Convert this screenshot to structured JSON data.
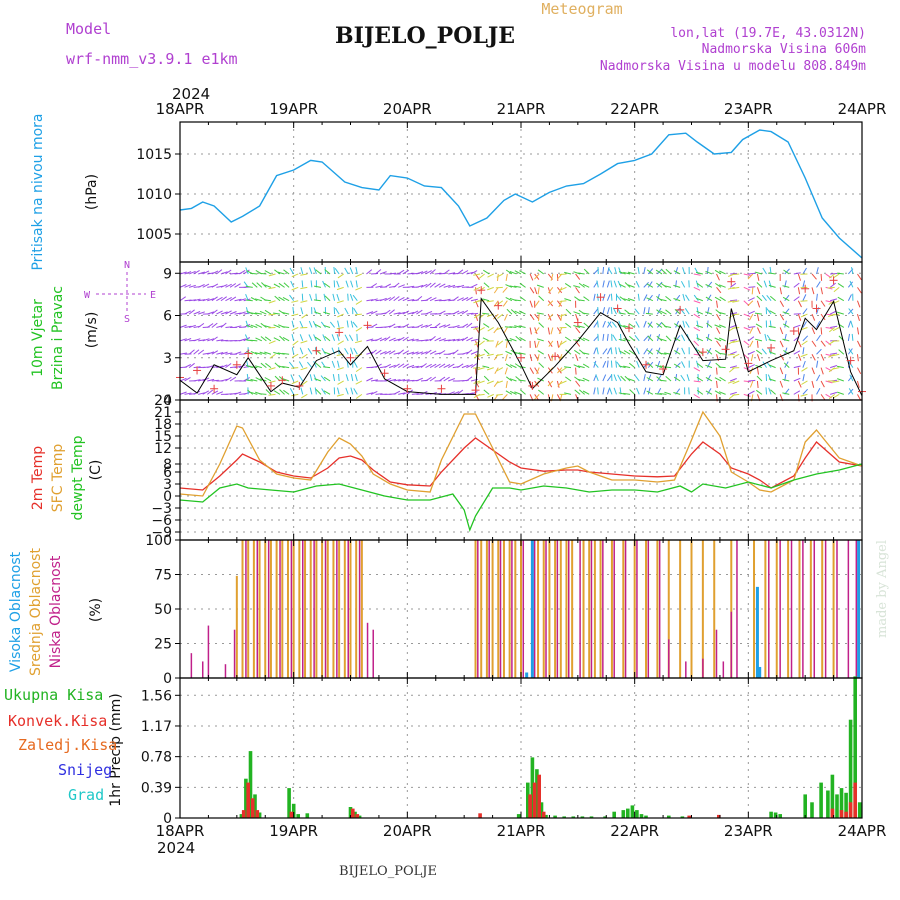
{
  "header": {
    "model_label": "Model",
    "model_value": "wrf-nmm_v3.9.1  e1km",
    "title": "BIJELO_POLJE",
    "meteogram": "Meteogram",
    "lonlat": "lon,lat (19.7E, 43.0312N)",
    "altitude": "Nadmorska Visina 606m",
    "model_altitude": "Nadmorska Visina u modelu 808.849m",
    "year_top": "2024",
    "year_bottom": "2024",
    "footer_title": "BIJELO_POLJE",
    "credit": "made by Angel"
  },
  "colors": {
    "pressure": "#1ea0e6",
    "wind_label": "#22c322",
    "temp_2m": "#e6302a",
    "temp_sfc": "#e0a030",
    "dewpt": "#22c322",
    "cloud_high": "#1ea0e6",
    "cloud_mid": "#e0a030",
    "cloud_low": "#c0208a",
    "rain_total": "#22b322",
    "rain_conv": "#e6302a",
    "rain_frozen": "#e66a20",
    "snow": "#3030e0",
    "hail": "#20c8c8",
    "purple_text": "#b040d0",
    "meteogram_text": "#e0b060"
  },
  "chart_data": [
    {
      "type": "line",
      "title": "",
      "ylabel_lines": [
        "Pritisak na nivou mora",
        "(hPa)"
      ],
      "ylim": [
        1001.5,
        1019
      ],
      "yticks": [
        1005,
        1010,
        1015
      ],
      "x_days": [
        0,
        0.1,
        0.2,
        0.3,
        0.45,
        0.55,
        0.7,
        0.85,
        1.0,
        1.15,
        1.25,
        1.45,
        1.6,
        1.75,
        1.85,
        2.0,
        2.15,
        2.3,
        2.45,
        2.55,
        2.7,
        2.85,
        2.95,
        3.1,
        3.25,
        3.4,
        3.55,
        3.7,
        3.85,
        4.0,
        4.15,
        4.3,
        4.45,
        4.55,
        4.7,
        4.85,
        4.95,
        5.1,
        5.2,
        5.35,
        5.5,
        5.65,
        5.8,
        6.0
      ],
      "values": [
        1008,
        1008.2,
        1009,
        1008.5,
        1006.5,
        1007.2,
        1008.5,
        1012.3,
        1013,
        1014.2,
        1014,
        1011.5,
        1010.8,
        1010.5,
        1012.3,
        1012,
        1011,
        1010.8,
        1008.5,
        1006,
        1007,
        1009.2,
        1010,
        1009,
        1010.2,
        1011,
        1011.3,
        1012.5,
        1013.8,
        1014.2,
        1015,
        1017.4,
        1017.6,
        1016.5,
        1015,
        1015.2,
        1016.8,
        1018,
        1017.8,
        1016.5,
        1012,
        1007,
        1004.5,
        1002
      ]
    },
    {
      "type": "line",
      "title": "",
      "ylabel_lines": [
        "10m Vjetar",
        "Brzina i Pravac",
        "(m/s)"
      ],
      "compass": [
        "N",
        "S",
        "W",
        "E"
      ],
      "ylim": [
        0,
        9.8
      ],
      "yticks": [
        0,
        3,
        6,
        9
      ],
      "x_days": [
        0,
        0.15,
        0.3,
        0.5,
        0.6,
        0.8,
        0.9,
        1.05,
        1.2,
        1.4,
        1.5,
        1.65,
        1.8,
        2.0,
        2.3,
        2.6,
        2.65,
        2.8,
        3.0,
        3.1,
        3.3,
        3.5,
        3.7,
        3.85,
        3.95,
        4.1,
        4.25,
        4.4,
        4.6,
        4.8,
        4.85,
        5.0,
        5.2,
        5.4,
        5.5,
        5.6,
        5.75,
        5.9,
        6.0
      ],
      "values": [
        1.4,
        0.5,
        2.5,
        1.8,
        3.0,
        0.6,
        1.2,
        0.9,
        2.8,
        3.5,
        2.5,
        3.8,
        1.5,
        0.6,
        0.4,
        0.4,
        7.2,
        5.5,
        2.5,
        0.8,
        2.4,
        4.2,
        6.2,
        5.5,
        4.0,
        2.0,
        1.8,
        5.3,
        2.8,
        2.9,
        6.5,
        2.0,
        2.8,
        3.5,
        5.8,
        5.0,
        7.0,
        2.0,
        0.3
      ],
      "red_markers": [
        1.6,
        2.1,
        0.8,
        2.5,
        3.3,
        1.0,
        1.4,
        1.0,
        3.5,
        4.8,
        3.0,
        5.3,
        1.9,
        0.8,
        0.8,
        0.7,
        7.8,
        6.7,
        3.0,
        1.0,
        3.1,
        5.5,
        7.3,
        6.5,
        5.1,
        2.5,
        2.2,
        6.4,
        3.4,
        3.6,
        8.4,
        2.6,
        3.7,
        4.9,
        7.9,
        6.5,
        8.5,
        2.8,
        0.6
      ]
    },
    {
      "type": "line",
      "title": "",
      "ylabel_lines": [
        "2m Temp",
        "SFC Temp",
        "dewpt Temp",
        "(C)"
      ],
      "ylim": [
        -11,
        24
      ],
      "yticks": [
        -9,
        -6,
        -3,
        0,
        3,
        6,
        8,
        12,
        15,
        18,
        21,
        24
      ],
      "series": [
        {
          "name": "2m Temp",
          "x_days": [
            0,
            0.2,
            0.35,
            0.5,
            0.55,
            0.7,
            0.85,
            1.0,
            1.15,
            1.3,
            1.4,
            1.5,
            1.6,
            1.7,
            1.85,
            2.0,
            2.2,
            2.3,
            2.5,
            2.6,
            2.75,
            2.9,
            3.0,
            3.2,
            3.4,
            3.5,
            3.6,
            3.8,
            4.0,
            4.2,
            4.35,
            4.5,
            4.6,
            4.75,
            4.85,
            5.0,
            5.1,
            5.2,
            5.4,
            5.5,
            5.6,
            5.8,
            6.0
          ],
          "values": [
            2,
            1.5,
            5,
            9,
            10.5,
            8.5,
            6,
            5,
            4.5,
            7,
            9.5,
            10,
            9,
            6.5,
            3.5,
            2.8,
            2.5,
            6,
            12,
            14.5,
            11.5,
            8.5,
            7,
            6.2,
            6.5,
            6.5,
            6,
            5.5,
            5,
            4.8,
            5,
            10.5,
            13.5,
            10.5,
            7,
            5.5,
            4,
            2,
            5,
            9.5,
            13.5,
            8.5,
            7.5
          ]
        },
        {
          "name": "SFC Temp",
          "x_days": [
            0,
            0.2,
            0.35,
            0.5,
            0.55,
            0.7,
            0.85,
            1.0,
            1.15,
            1.3,
            1.4,
            1.5,
            1.6,
            1.7,
            1.85,
            2.0,
            2.2,
            2.3,
            2.5,
            2.6,
            2.75,
            2.9,
            3.0,
            3.2,
            3.4,
            3.5,
            3.6,
            3.8,
            4.0,
            4.2,
            4.35,
            4.5,
            4.6,
            4.75,
            4.85,
            5.0,
            5.1,
            5.2,
            5.4,
            5.5,
            5.6,
            5.8,
            6.0
          ],
          "values": [
            0.5,
            0,
            8,
            17.5,
            17,
            9,
            5.5,
            4.5,
            4,
            11,
            14.5,
            13,
            10,
            5.5,
            3,
            1.5,
            1,
            9,
            20.5,
            20.5,
            12,
            3.5,
            3,
            5.5,
            7,
            7.5,
            6,
            4,
            4,
            3.5,
            4,
            14,
            21,
            15,
            6,
            3.5,
            1.5,
            1,
            4,
            13.5,
            16.5,
            9.5,
            7.5
          ]
        },
        {
          "name": "dewpt Temp",
          "x_days": [
            0,
            0.2,
            0.35,
            0.5,
            0.6,
            0.8,
            1.0,
            1.2,
            1.4,
            1.6,
            1.8,
            2.0,
            2.2,
            2.4,
            2.5,
            2.55,
            2.6,
            2.75,
            2.9,
            3.0,
            3.2,
            3.4,
            3.6,
            3.8,
            4.0,
            4.2,
            4.4,
            4.5,
            4.6,
            4.8,
            5.0,
            5.2,
            5.4,
            5.6,
            5.8,
            6.0
          ],
          "values": [
            -1,
            -1.5,
            2,
            3,
            2,
            1.5,
            1,
            2.5,
            3,
            1.5,
            0,
            -1,
            -1,
            0.5,
            -3.5,
            -8.5,
            -5,
            2,
            2,
            1.5,
            2.5,
            2,
            1,
            1.5,
            1.5,
            1,
            2.5,
            1,
            3,
            2,
            3.5,
            2,
            4,
            5.5,
            6.5,
            8
          ]
        }
      ]
    },
    {
      "type": "bar",
      "title": "",
      "ylabel_lines": [
        "Visoka Oblacnost",
        "Srednja Oblacnost",
        "Niska Oblacnost",
        "(%)"
      ],
      "ylim": [
        0,
        100
      ],
      "yticks": [
        0,
        25,
        50,
        75,
        100
      ],
      "series": [
        {
          "name": "Visoka Oblacnost",
          "x_days": [
            3.05,
            3.1,
            5.08,
            5.1,
            5.97
          ],
          "values": [
            4,
            100,
            66,
            8,
            100
          ]
        },
        {
          "name": "Srednja Oblacnost",
          "x_days": [
            0.5,
            0.55,
            0.6,
            0.65,
            0.7,
            0.75,
            0.8,
            0.85,
            0.9,
            0.95,
            1.0,
            1.05,
            1.1,
            1.15,
            1.2,
            1.25,
            1.3,
            1.35,
            1.4,
            1.45,
            1.5,
            1.55,
            1.6,
            2.6,
            2.65,
            2.7,
            2.75,
            2.8,
            2.85,
            2.9,
            2.95,
            3.0,
            3.15,
            3.2,
            3.25,
            3.3,
            3.35,
            3.4,
            3.45,
            3.55,
            3.6,
            3.65,
            3.7,
            3.8,
            3.9,
            4.0,
            4.1,
            4.2,
            4.3,
            4.4,
            4.5,
            4.6,
            4.7,
            4.85,
            5.05,
            5.15,
            5.25,
            5.35,
            5.45,
            5.55,
            5.65,
            5.75
          ],
          "values": [
            74,
            100,
            100,
            100,
            100,
            100,
            100,
            100,
            100,
            100,
            100,
            100,
            100,
            100,
            100,
            100,
            100,
            100,
            100,
            100,
            100,
            100,
            100,
            100,
            100,
            100,
            100,
            100,
            100,
            100,
            100,
            100,
            100,
            100,
            100,
            100,
            100,
            100,
            100,
            100,
            100,
            100,
            100,
            100,
            100,
            100,
            100,
            100,
            100,
            100,
            100,
            100,
            100,
            100,
            100,
            100,
            100,
            100,
            100,
            100,
            100,
            100
          ]
        },
        {
          "name": "Niska Oblacnost",
          "x_days": [
            0.1,
            0.2,
            0.25,
            0.4,
            0.48,
            0.58,
            0.68,
            0.78,
            0.88,
            0.98,
            1.08,
            1.18,
            1.28,
            1.38,
            1.48,
            1.58,
            1.65,
            1.7,
            2.62,
            2.72,
            2.82,
            2.92,
            3.02,
            3.12,
            3.22,
            3.32,
            3.42,
            3.52,
            3.62,
            3.72,
            3.82,
            3.92,
            4.02,
            4.12,
            4.22,
            4.3,
            4.45,
            4.6,
            4.72,
            4.78,
            4.85,
            4.9,
            5.18,
            5.28,
            5.38,
            5.48,
            5.58,
            5.68,
            5.78,
            5.88,
            5.95
          ],
          "values": [
            18,
            12,
            38,
            10,
            35,
            100,
            100,
            100,
            100,
            100,
            100,
            100,
            100,
            100,
            100,
            100,
            40,
            35,
            100,
            100,
            100,
            100,
            100,
            100,
            100,
            100,
            100,
            100,
            100,
            100,
            100,
            100,
            100,
            100,
            100,
            28,
            12,
            14,
            35,
            12,
            48,
            100,
            100,
            100,
            100,
            100,
            100,
            100,
            100,
            100,
            100
          ]
        }
      ]
    },
    {
      "type": "bar",
      "title": "",
      "ylabel_lines": [
        "1hr Precip (mm)"
      ],
      "legend": [
        "Ukupna Kisa",
        "Konvek.Kisa",
        "Zaledj.Kisa",
        "Snijeg",
        "Grad"
      ],
      "ylim": [
        0,
        1.78
      ],
      "yticks": [
        0,
        0.39,
        0.78,
        1.17,
        1.56
      ],
      "series": [
        {
          "name": "Ukupna Kisa",
          "x_days": [
            0.54,
            0.58,
            0.62,
            0.66,
            0.7,
            0.96,
            1.0,
            1.04,
            1.12,
            1.5,
            1.54,
            1.58,
            2.98,
            3.06,
            3.1,
            3.14,
            3.18,
            3.22,
            3.3,
            3.38,
            3.46,
            3.54,
            3.62,
            3.74,
            3.82,
            3.9,
            3.94,
            3.98,
            4.02,
            4.06,
            4.1,
            4.3,
            4.42,
            5.2,
            5.24,
            5.28,
            5.5,
            5.56,
            5.64,
            5.7,
            5.74,
            5.78,
            5.82,
            5.86,
            5.9,
            5.94,
            5.98
          ],
          "values": [
            0.05,
            0.5,
            0.85,
            0.3,
            0.07,
            0.38,
            0.18,
            0.05,
            0.06,
            0.14,
            0.08,
            0.03,
            0.05,
            0.45,
            0.77,
            0.62,
            0.2,
            0.04,
            0.03,
            0.02,
            0.02,
            0.02,
            0.02,
            0.02,
            0.08,
            0.1,
            0.12,
            0.16,
            0.1,
            0.05,
            0.03,
            0.03,
            0.02,
            0.08,
            0.07,
            0.05,
            0.3,
            0.2,
            0.45,
            0.35,
            0.55,
            0.3,
            0.38,
            0.32,
            1.25,
            1.8,
            0.2
          ]
        },
        {
          "name": "Konvek.Kisa",
          "x_days": [
            0.56,
            0.6,
            0.64,
            0.68,
            0.98,
            1.52,
            1.56,
            2.64,
            3.08,
            3.12,
            3.16,
            3.2,
            4.48,
            4.74,
            5.74,
            5.82,
            5.86,
            5.9,
            5.94
          ],
          "values": [
            0.1,
            0.45,
            0.25,
            0.1,
            0.08,
            0.12,
            0.05,
            0.06,
            0.3,
            0.45,
            0.55,
            0.08,
            0.03,
            0.04,
            0.12,
            0.1,
            0.08,
            0.2,
            0.45
          ]
        }
      ]
    }
  ],
  "axis": {
    "days": [
      "18APR",
      "19APR",
      "20APR",
      "21APR",
      "22APR",
      "23APR",
      "24APR"
    ]
  }
}
